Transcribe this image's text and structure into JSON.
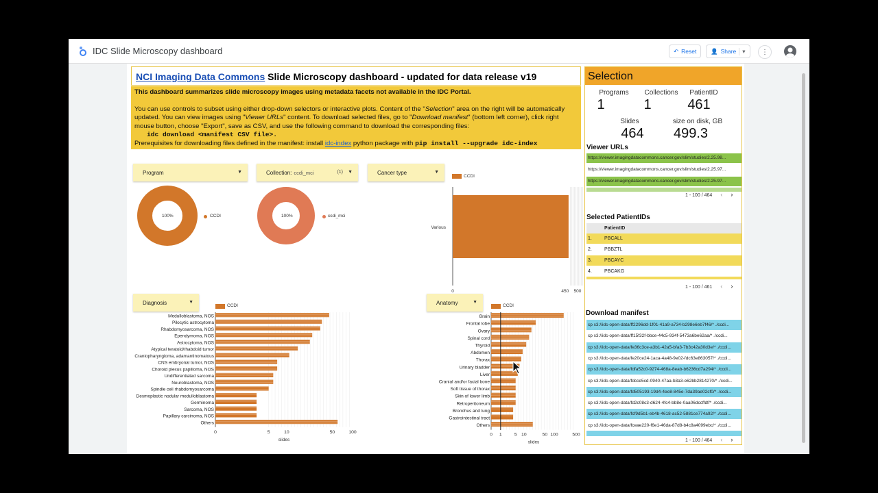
{
  "app": {
    "title": "IDC Slide Microscopy dashboard",
    "reset_label": "Reset",
    "share_label": "Share"
  },
  "header": {
    "link_text": "NCI Imaging Data Commons",
    "title_rest": " Slide Microscopy dashboard - updated for data release v19",
    "summary": "This dashboard summarizes slide microscopy images using metadata facets not available in the IDC Portal.",
    "p1": "You can use controls to subset using either drop-down selectors or interactive plots. Content of the \"",
    "p1_em": "Selection",
    "p1b": "\" area on the right will be automatically updated. You can view images using \"",
    "p1_em2": "Viewer URLs",
    "p1c": "\" content. To download selected files, go to \"",
    "p1_em3": "Download manifest",
    "p1d": "\" (bottom left corner), click right mouse button, choose \"Export\", save as CSV, and use the following command to download the corresponding files:",
    "command": "idc download <manifest CSV file>.",
    "prereq": "Prerequisites for downloading files defined in the manifest: install ",
    "prereq_link": "idc-index",
    "prereq_mid": " python package with ",
    "prereq_cmd": "pip install --upgrade idc-index"
  },
  "controls": {
    "program": "Program",
    "collection": "Collection:",
    "collection_value": "ccdi_mci",
    "collection_count": "(1)",
    "cancer_type": "Cancer type",
    "diagnosis": "Diagnosis",
    "anatomy": "Anatomy"
  },
  "donut1": {
    "pct": "100%",
    "legend": "CCDI",
    "color": "#d2772a"
  },
  "donut2": {
    "pct": "100%",
    "legend": "ccdi_mci",
    "color": "#e07a55"
  },
  "bar_top": {
    "legend": "CCDI",
    "category": "Various",
    "xlabel": "slides",
    "ticks": [
      "0",
      "450",
      "500"
    ]
  },
  "diag_chart": {
    "legend": "CCDI",
    "xlabel": "slides",
    "ticks": [
      "0",
      "5",
      "10",
      "50",
      "100"
    ]
  },
  "anat_chart": {
    "legend": "CCDI",
    "xlabel": "slides",
    "ticks": [
      "0",
      "1",
      "5",
      "10",
      "50",
      "100",
      "500"
    ]
  },
  "chart_data": [
    {
      "type": "bar",
      "orientation": "horizontal",
      "categories": [
        "Various"
      ],
      "series": [
        {
          "name": "CCDI",
          "values": [
            464
          ]
        }
      ],
      "xlabel": "slides",
      "xlim": [
        0,
        500
      ]
    },
    {
      "type": "bar",
      "orientation": "horizontal",
      "scale": "log",
      "categories": [
        "Medulloblastoma, NOS",
        "Pilocytic astrocytoma",
        "Rhabdomyosarcoma, NOS",
        "Ependymoma, NOS",
        "Astrocytoma, NOS",
        "Atypical teratoid/rhabdoid tumor",
        "Craniopharyngioma, adamantinomatous",
        "CNS embryonal tumor, NOS",
        "Choroid plexus papilloma, NOS",
        "Undifferentiated sarcoma",
        "Neuroblastoma, NOS",
        "Spindle cell rhabdomyosarcoma",
        "Desmoplastic nodular medulloblastoma",
        "Germinoma",
        "Sarcoma, NOS",
        "Papillary carcinoma, NOS",
        "Others"
      ],
      "series": [
        {
          "name": "CCDI",
          "values": [
            45,
            35,
            33,
            25,
            23,
            15,
            11,
            7,
            7,
            6,
            6,
            5,
            3,
            3,
            3,
            3,
            60
          ]
        }
      ],
      "xlabel": "slides",
      "xlim": [
        0,
        100
      ]
    },
    {
      "type": "bar",
      "orientation": "horizontal",
      "scale": "log",
      "categories": [
        "Brain",
        "Frontal lobe",
        "Ovary",
        "Spinal cord",
        "Thyroid",
        "Abdomen",
        "Thorax",
        "Urinary bladder",
        "Liver",
        "Cranial and/or facial bone",
        "Soft tissue of thorax",
        "Skin of lower limb",
        "Retroperitoneum",
        "Bronchus and lung",
        "Gastrointestinal tract",
        "Others"
      ],
      "series": [
        {
          "name": "CCDI",
          "values": [
            200,
            25,
            18,
            15,
            12,
            9,
            8,
            7,
            6,
            5,
            5,
            5,
            5,
            4,
            4,
            20
          ]
        }
      ],
      "xlabel": "slides",
      "xlim": [
        0,
        500
      ]
    }
  ],
  "selection": {
    "title": "Selection",
    "kpis": [
      {
        "label": "Programs",
        "value": "1"
      },
      {
        "label": "Collections",
        "value": "1"
      },
      {
        "label": "PatientID",
        "value": "461"
      },
      {
        "label": "Slides",
        "value": "464"
      },
      {
        "label": "size on disk, GB",
        "value": "499.3"
      }
    ],
    "viewer_title": "Viewer URLs",
    "viewer_urls": [
      {
        "text": "https://viewer.imagingdatacommons.cancer.gov/slim/studies/2.25.98...",
        "color": "#8bc34a"
      },
      {
        "text": "https://viewer.imagingdatacommons.cancer.gov/slim/studies/2.25.97...",
        "color": "#ffffff"
      },
      {
        "text": "https://viewer.imagingdatacommons.cancer.gov/slim/studies/2.25.97...",
        "color": "#8bc34a"
      }
    ],
    "viewer_pager": "1 - 100 / 464",
    "pid_title": "Selected PatientIDs",
    "pid_header": "PatientID",
    "pids": [
      {
        "n": "1.",
        "v": "PBCALL",
        "color": "#f2da5a"
      },
      {
        "n": "2.",
        "v": "PBBZTL",
        "color": "#ffffff"
      },
      {
        "n": "3.",
        "v": "PBCAYC",
        "color": "#f2da5a"
      },
      {
        "n": "4.",
        "v": "PBCAKG",
        "color": "#ffffff"
      }
    ],
    "pid_pager": "1 - 100 / 461",
    "dl_title": "Download manifest",
    "downloads": [
      {
        "text": "cp s3://idc-open-data/ff2296dd-1f01-41a9-a734-b298e6eb7f46/* ./ccdi...",
        "color": "#7fd3e8"
      },
      {
        "text": "cp s3://idc-open-data/ff15f32f-bbce-44c5-934f-5473a6be62aa/* ./ccdi...",
        "color": "#ffffff"
      },
      {
        "text": "cp s3://idc-open-data/fe36c3ce-a3b1-42a5-bfa3-7b3c42a30d3e/* ./ccdi...",
        "color": "#7fd3e8"
      },
      {
        "text": "cp s3://idc-open-data/fe20ce24-1aca-4a48-9e02-fdc63e863057/* ./ccdi...",
        "color": "#ffffff"
      },
      {
        "text": "cp s3://idc-open-data/fdfa52c0-9274-468a-8eab-b6236cd7a294/* ./ccdi...",
        "color": "#7fd3e8"
      },
      {
        "text": "cp s3://idc-open-data/fdcce5cd-0940-47aa-b3a3-e62bb2814270/* ./ccdi...",
        "color": "#ffffff"
      },
      {
        "text": "cp s3://idc-open-data/fd505193-19d4-4ee8-845e-7da39ae02cf0/* ./ccdi...",
        "color": "#7fd3e8"
      },
      {
        "text": "cp s3://idc-open-data/fd2c08c3-d624-4fc4-bb8e-0aa06dccffdf/* ./ccdi...",
        "color": "#ffffff"
      },
      {
        "text": "cp s3://idc-open-data/fcf9d5b1-eb4b-4618-ac52-5881ce774a92/* ./ccdi...",
        "color": "#7fd3e8"
      },
      {
        "text": "cp s3://idc-open-data/fceae220-f6e1-46da-87d8-b4c8a4099ebc/* ./ccdi...",
        "color": "#ffffff"
      }
    ],
    "dl_pager": "1 - 100 / 464"
  }
}
